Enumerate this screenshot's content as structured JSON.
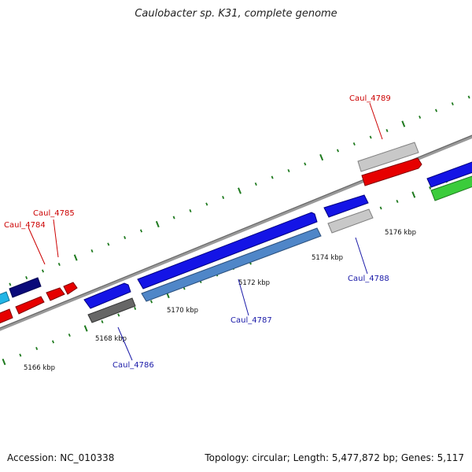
{
  "title": "Caulobacter sp. K31, complete genome",
  "footer": {
    "accession": "Accession: NC_010338",
    "summary": "Topology: circular; Length: 5,477,872 bp; Genes: 5,117"
  },
  "colors": {
    "backbone": "#777777",
    "tick": "#1f7a1f",
    "label_red": "#cc0000",
    "label_blue": "#1a1aa8"
  },
  "scale_labels": [
    "5166 kbp",
    "5168 kbp",
    "5170 kbp",
    "5172 kbp",
    "5174 kbp",
    "5176 kbp"
  ],
  "gene_labels": [
    {
      "id": "caul-4784",
      "text": "Caul_4784",
      "color": "red"
    },
    {
      "id": "caul-4785",
      "text": "Caul_4785",
      "color": "red"
    },
    {
      "id": "caul-4786",
      "text": "Caul_4786",
      "color": "blue"
    },
    {
      "id": "caul-4787",
      "text": "Caul_4787",
      "color": "blue"
    },
    {
      "id": "caul-4788",
      "text": "Caul_4788",
      "color": "blue"
    },
    {
      "id": "caul-4789",
      "text": "Caul_4789",
      "color": "red"
    }
  ]
}
